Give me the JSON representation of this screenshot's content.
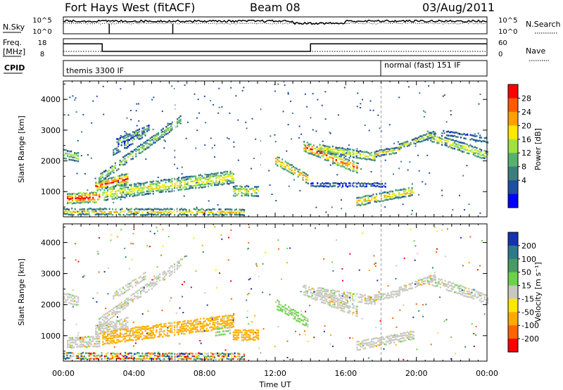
{
  "header": {
    "station": "Fort Hays West (fitACF)",
    "beam": "Beam 08",
    "date": "03/Aug/2011"
  },
  "top_panels": {
    "nsky_label": "N.Sky",
    "nsearch_label": "N.Search",
    "nsky_ticks": [
      "10^5",
      "10^0"
    ],
    "nsearch_ticks": [
      "10^5",
      "10^0"
    ],
    "freq_label_1": "Freq.",
    "freq_label_2": "[MHz]",
    "freq_ticks": [
      "18",
      "8"
    ],
    "nave_label": "Nave",
    "nave_ticks": [
      "60",
      "0"
    ],
    "cpid_label": "CPID",
    "cpid_segments": [
      {
        "label": "themis 3300 IF",
        "start": 0.0
      },
      {
        "label": "normal (fast) 151 IF",
        "start": 18.0
      }
    ]
  },
  "chart_data": [
    {
      "type": "line",
      "name": "freq-panel",
      "x_unit": "hours UT",
      "ylabel": "Freq. [MHz]",
      "ylim": [
        8,
        18
      ],
      "series": [
        {
          "name": "Freq.",
          "x": [
            0,
            2.2,
            2.2,
            14.0,
            14.0,
            24
          ],
          "y": [
            15,
            15,
            10.5,
            10.5,
            15,
            15
          ]
        }
      ]
    },
    {
      "type": "heatmap",
      "name": "power-panel",
      "xlabel": "",
      "ylabel": "Slant Range [km]",
      "xlim": [
        0,
        24
      ],
      "ylim": [
        180,
        4600
      ],
      "colorbar": {
        "label": "Power [dB]",
        "ticks": [
          "28",
          "24",
          "20",
          "16",
          "12",
          "8",
          "4"
        ],
        "colors": [
          "#ff0000",
          "#ff5a00",
          "#ff9f00",
          "#ffe800",
          "#a0e040",
          "#58b070",
          "#3a7f7f",
          "#1f4fa0",
          "#0000ff"
        ]
      },
      "echo_bands": [
        {
          "x0": 0.0,
          "x1": 0.8,
          "r0": 2250,
          "r1": 2150,
          "w": 260,
          "p": 0.45
        },
        {
          "x0": 0.2,
          "x1": 2.0,
          "r0": 800,
          "r1": 850,
          "w": 300,
          "p": 0.9
        },
        {
          "x0": 1.8,
          "x1": 3.6,
          "r0": 1200,
          "r1": 1450,
          "w": 280,
          "p": 0.85
        },
        {
          "x0": 2.0,
          "x1": 6.6,
          "r0": 1450,
          "r1": 3350,
          "w": 240,
          "p": 0.45
        },
        {
          "x0": 2.8,
          "x1": 4.6,
          "r0": 2300,
          "r1": 2950,
          "w": 180,
          "p": 0.3
        },
        {
          "x0": 3.0,
          "x1": 4.8,
          "r0": 2650,
          "r1": 3100,
          "w": 160,
          "p": 0.3
        },
        {
          "x0": 2.2,
          "x1": 9.6,
          "r0": 950,
          "r1": 1500,
          "w": 380,
          "p": 0.55
        },
        {
          "x0": 0.0,
          "x1": 10.2,
          "r0": 380,
          "r1": 360,
          "w": 170,
          "p": 0.55
        },
        {
          "x0": 9.6,
          "x1": 11.0,
          "r0": 1050,
          "r1": 1050,
          "w": 300,
          "p": 0.5
        },
        {
          "x0": 12.0,
          "x1": 13.8,
          "r0": 2050,
          "r1": 1450,
          "w": 260,
          "p": 0.7
        },
        {
          "x0": 13.6,
          "x1": 16.6,
          "r0": 2500,
          "r1": 1800,
          "w": 300,
          "p": 0.75
        },
        {
          "x0": 14.4,
          "x1": 17.6,
          "r0": 2450,
          "r1": 2150,
          "w": 220,
          "p": 0.6
        },
        {
          "x0": 14.0,
          "x1": 18.2,
          "r0": 1250,
          "r1": 1250,
          "w": 90,
          "p": 0.3
        },
        {
          "x0": 16.6,
          "x1": 19.8,
          "r0": 700,
          "r1": 1050,
          "w": 240,
          "p": 0.65
        },
        {
          "x0": 17.6,
          "x1": 19.0,
          "r0": 2250,
          "r1": 2400,
          "w": 160,
          "p": 0.55
        },
        {
          "x0": 19.0,
          "x1": 21.0,
          "r0": 2500,
          "r1": 2900,
          "w": 150,
          "p": 0.45
        },
        {
          "x0": 20.6,
          "x1": 24.0,
          "r0": 2850,
          "r1": 2200,
          "w": 260,
          "p": 0.55
        },
        {
          "x0": 21.5,
          "x1": 24.0,
          "r0": 2950,
          "r1": 2700,
          "w": 120,
          "p": 0.3
        }
      ]
    },
    {
      "type": "heatmap",
      "name": "velocity-panel",
      "xlabel": "Time UT",
      "ylabel": "Slant Range [km]",
      "xlim": [
        0,
        24
      ],
      "ylim": [
        180,
        4600
      ],
      "colorbar": {
        "label": "Velocity [m s⁻¹]",
        "ticks": [
          "200",
          "100",
          "50",
          "15",
          "-15",
          "-50",
          "-100",
          "-200"
        ],
        "colors": [
          "#1533b0",
          "#2d7a8c",
          "#4a9a66",
          "#6cd24a",
          "#c8c8c0",
          "#ffe800",
          "#ffaa00",
          "#ff6400",
          "#ff0000"
        ]
      },
      "echo_bands": [
        {
          "x0": 0.0,
          "x1": 0.8,
          "r0": 2250,
          "r1": 2150,
          "w": 260,
          "v": "gray"
        },
        {
          "x0": 0.2,
          "x1": 2.0,
          "r0": 800,
          "r1": 850,
          "w": 300,
          "v": "gray"
        },
        {
          "x0": 1.8,
          "x1": 3.6,
          "r0": 1200,
          "r1": 1450,
          "w": 280,
          "v": "gray"
        },
        {
          "x0": 2.0,
          "x1": 6.6,
          "r0": 1450,
          "r1": 3350,
          "w": 240,
          "v": "gray"
        },
        {
          "x0": 2.8,
          "x1": 4.6,
          "r0": 2300,
          "r1": 2950,
          "w": 180,
          "v": "gray"
        },
        {
          "x0": 2.2,
          "x1": 9.6,
          "r0": 950,
          "r1": 1500,
          "w": 380,
          "v": "orange"
        },
        {
          "x0": 8.6,
          "x1": 9.4,
          "r0": 1150,
          "r1": 1200,
          "w": 200,
          "v": "green"
        },
        {
          "x0": 0.0,
          "x1": 10.2,
          "r0": 380,
          "r1": 360,
          "w": 170,
          "v": "mixed"
        },
        {
          "x0": 9.6,
          "x1": 11.0,
          "r0": 1050,
          "r1": 1050,
          "w": 300,
          "v": "orange"
        },
        {
          "x0": 12.0,
          "x1": 13.8,
          "r0": 2050,
          "r1": 1450,
          "w": 260,
          "v": "green"
        },
        {
          "x0": 13.6,
          "x1": 16.6,
          "r0": 2500,
          "r1": 1800,
          "w": 300,
          "v": "gray"
        },
        {
          "x0": 14.4,
          "x1": 17.6,
          "r0": 2450,
          "r1": 2150,
          "w": 220,
          "v": "gray"
        },
        {
          "x0": 16.6,
          "x1": 19.8,
          "r0": 700,
          "r1": 1050,
          "w": 240,
          "v": "gray"
        },
        {
          "x0": 17.6,
          "x1": 19.0,
          "r0": 2250,
          "r1": 2400,
          "w": 160,
          "v": "gray"
        },
        {
          "x0": 19.0,
          "x1": 21.0,
          "r0": 2500,
          "r1": 2900,
          "w": 150,
          "v": "gray"
        },
        {
          "x0": 20.6,
          "x1": 24.0,
          "r0": 2850,
          "r1": 2200,
          "w": 260,
          "v": "gray"
        }
      ]
    }
  ],
  "axes": {
    "range_ticks": [
      "4000",
      "3000",
      "2000",
      "1000"
    ],
    "range_values": [
      4000,
      3000,
      2000,
      1000
    ],
    "time_ticks": [
      "00:00",
      "04:00",
      "08:00",
      "12:00",
      "16:00",
      "20:00",
      "00:00"
    ],
    "time_values": [
      0,
      4,
      8,
      12,
      16,
      20,
      24
    ],
    "ylabel": "Slant Range [km]",
    "xlabel": "Time UT",
    "power_cb_label": "Power [dB]",
    "vel_cb_label": "Velocity [m s⁻¹]"
  }
}
